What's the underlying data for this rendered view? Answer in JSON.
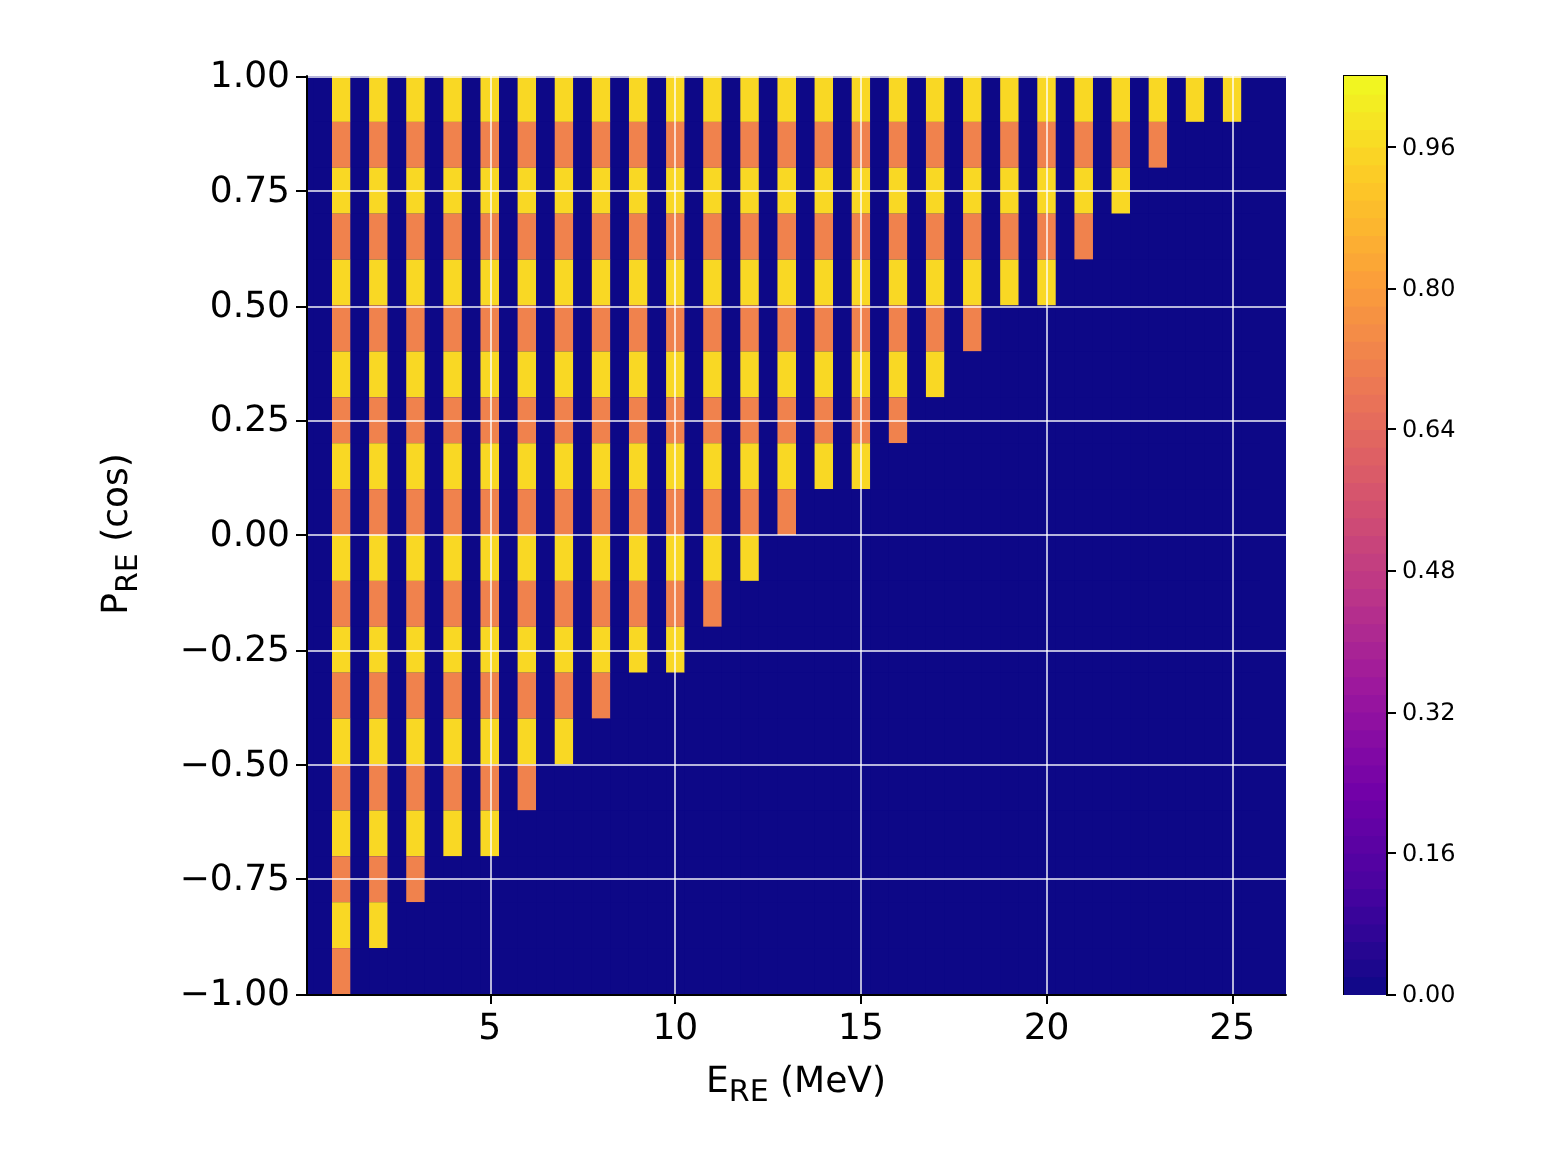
{
  "chart_data": {
    "type": "heatmap",
    "xlabel": "E$_{RE}$ (MeV)",
    "ylabel": "P$_{RE}$ (cos)",
    "x": [
      0.5,
      1,
      1.5,
      2,
      2.5,
      3,
      3.5,
      4,
      4.5,
      5,
      5.5,
      6,
      6.5,
      7,
      7.5,
      8,
      8.5,
      9,
      9.5,
      10,
      10.5,
      11,
      11.5,
      12,
      12.5,
      13,
      13.5,
      14,
      14.5,
      15,
      15.5,
      16,
      16.5,
      17,
      17.5,
      18,
      18.5,
      19,
      19.5,
      20,
      20.5,
      21,
      21.5,
      22,
      22.5,
      23,
      23.5,
      24,
      24.5,
      25,
      25.5
    ],
    "cells": [
      [
        0,
        0.96,
        0,
        0.96,
        0,
        0.96,
        0,
        0.96,
        0,
        0.96,
        0,
        0.96,
        0,
        0.96,
        0,
        0.96,
        0,
        0.96,
        0,
        0.96,
        0,
        0.96,
        0,
        0.96,
        0,
        0.96,
        0,
        0.96,
        0,
        0.96,
        0,
        0.96,
        0,
        0.96,
        0,
        0.96,
        0,
        0.96,
        0,
        0.96,
        0,
        0.96,
        0,
        0.96,
        0,
        0.96,
        0,
        0.96,
        0,
        0.96,
        0
      ],
      [
        0,
        0.72,
        0,
        0.72,
        0,
        0.72,
        0,
        0.72,
        0,
        0.72,
        0,
        0.72,
        0,
        0.72,
        0,
        0.72,
        0,
        0.72,
        0,
        0.72,
        0,
        0.72,
        0,
        0.72,
        0,
        0.72,
        0,
        0.72,
        0,
        0.72,
        0,
        0.72,
        0,
        0.72,
        0,
        0.72,
        0,
        0.72,
        0,
        0.72,
        0,
        0.72,
        0,
        0.72,
        0,
        0.72,
        0,
        0,
        0,
        0,
        0
      ],
      [
        0,
        0.96,
        0,
        0.96,
        0,
        0.96,
        0,
        0.96,
        0,
        0.96,
        0,
        0.96,
        0,
        0.96,
        0,
        0.96,
        0,
        0.96,
        0,
        0.96,
        0,
        0.96,
        0,
        0.96,
        0,
        0.96,
        0,
        0.96,
        0,
        0.96,
        0,
        0.96,
        0,
        0.96,
        0,
        0.96,
        0,
        0.96,
        0,
        0.96,
        0,
        0.96,
        0,
        0.96,
        0,
        0,
        0,
        0,
        0,
        0,
        0
      ],
      [
        0,
        0.72,
        0,
        0.72,
        0,
        0.72,
        0,
        0.72,
        0,
        0.72,
        0,
        0.72,
        0,
        0.72,
        0,
        0.72,
        0,
        0.72,
        0,
        0.72,
        0,
        0.72,
        0,
        0.72,
        0,
        0.72,
        0,
        0.72,
        0,
        0.72,
        0,
        0.72,
        0,
        0.72,
        0,
        0.72,
        0,
        0.72,
        0,
        0.72,
        0,
        0.72,
        0,
        0,
        0,
        0,
        0,
        0,
        0,
        0,
        0
      ],
      [
        0,
        0.96,
        0,
        0.96,
        0,
        0.96,
        0,
        0.96,
        0,
        0.96,
        0,
        0.96,
        0,
        0.96,
        0,
        0.96,
        0,
        0.96,
        0,
        0.96,
        0,
        0.96,
        0,
        0.96,
        0,
        0.96,
        0,
        0.96,
        0,
        0.96,
        0,
        0.96,
        0,
        0.96,
        0,
        0.96,
        0,
        0.96,
        0,
        0.96,
        0,
        0,
        0,
        0,
        0,
        0,
        0,
        0,
        0,
        0,
        0
      ],
      [
        0,
        0.72,
        0,
        0.72,
        0,
        0.72,
        0,
        0.72,
        0,
        0.72,
        0,
        0.72,
        0,
        0.72,
        0,
        0.72,
        0,
        0.72,
        0,
        0.72,
        0,
        0.72,
        0,
        0.72,
        0,
        0.72,
        0,
        0.72,
        0,
        0.72,
        0,
        0.72,
        0,
        0.72,
        0,
        0.72,
        0,
        0,
        0,
        0,
        0,
        0,
        0,
        0,
        0,
        0,
        0,
        0,
        0,
        0,
        0
      ],
      [
        0,
        0.96,
        0,
        0.96,
        0,
        0.96,
        0,
        0.96,
        0,
        0.96,
        0,
        0.96,
        0,
        0.96,
        0,
        0.96,
        0,
        0.96,
        0,
        0.96,
        0,
        0.96,
        0,
        0.96,
        0,
        0.96,
        0,
        0.96,
        0,
        0.96,
        0,
        0.96,
        0,
        0.96,
        0,
        0,
        0,
        0,
        0,
        0,
        0,
        0,
        0,
        0,
        0,
        0,
        0,
        0,
        0,
        0,
        0
      ],
      [
        0,
        0.72,
        0,
        0.72,
        0,
        0.72,
        0,
        0.72,
        0,
        0.72,
        0,
        0.72,
        0,
        0.72,
        0,
        0.72,
        0,
        0.72,
        0,
        0.72,
        0,
        0.72,
        0,
        0.72,
        0,
        0.72,
        0,
        0.72,
        0,
        0.72,
        0,
        0.72,
        0,
        0,
        0,
        0,
        0,
        0,
        0,
        0,
        0,
        0,
        0,
        0,
        0,
        0,
        0,
        0,
        0,
        0,
        0
      ],
      [
        0,
        0.96,
        0,
        0.96,
        0,
        0.96,
        0,
        0.96,
        0,
        0.96,
        0,
        0.96,
        0,
        0.96,
        0,
        0.96,
        0,
        0.96,
        0,
        0.96,
        0,
        0.96,
        0,
        0.96,
        0,
        0.96,
        0,
        0.96,
        0,
        0.96,
        0,
        0,
        0,
        0,
        0,
        0,
        0,
        0,
        0,
        0,
        0,
        0,
        0,
        0,
        0,
        0,
        0,
        0,
        0,
        0,
        0
      ],
      [
        0,
        0.72,
        0,
        0.72,
        0,
        0.72,
        0,
        0.72,
        0,
        0.72,
        0,
        0.72,
        0,
        0.72,
        0,
        0.72,
        0,
        0.72,
        0,
        0.72,
        0,
        0.72,
        0,
        0.72,
        0,
        0.72,
        0,
        0,
        0,
        0,
        0,
        0,
        0,
        0,
        0,
        0,
        0,
        0,
        0,
        0,
        0,
        0,
        0,
        0,
        0,
        0,
        0,
        0,
        0,
        0,
        0
      ],
      [
        0,
        0.96,
        0,
        0.96,
        0,
        0.96,
        0,
        0.96,
        0,
        0.96,
        0,
        0.96,
        0,
        0.96,
        0,
        0.96,
        0,
        0.96,
        0,
        0.96,
        0,
        0.96,
        0,
        0.96,
        0,
        0,
        0,
        0,
        0,
        0,
        0,
        0,
        0,
        0,
        0,
        0,
        0,
        0,
        0,
        0,
        0,
        0,
        0,
        0,
        0,
        0,
        0,
        0,
        0,
        0,
        0
      ],
      [
        0,
        0.72,
        0,
        0.72,
        0,
        0.72,
        0,
        0.72,
        0,
        0.72,
        0,
        0.72,
        0,
        0.72,
        0,
        0.72,
        0,
        0.72,
        0,
        0.72,
        0,
        0.72,
        0,
        0,
        0,
        0,
        0,
        0,
        0,
        0,
        0,
        0,
        0,
        0,
        0,
        0,
        0,
        0,
        0,
        0,
        0,
        0,
        0,
        0,
        0,
        0,
        0,
        0,
        0,
        0,
        0
      ],
      [
        0,
        0.96,
        0,
        0.96,
        0,
        0.96,
        0,
        0.96,
        0,
        0.96,
        0,
        0.96,
        0,
        0.96,
        0,
        0.96,
        0,
        0.96,
        0,
        0.96,
        0,
        0,
        0,
        0,
        0,
        0,
        0,
        0,
        0,
        0,
        0,
        0,
        0,
        0,
        0,
        0,
        0,
        0,
        0,
        0,
        0,
        0,
        0,
        0,
        0,
        0,
        0,
        0,
        0,
        0,
        0
      ],
      [
        0,
        0.72,
        0,
        0.72,
        0,
        0.72,
        0,
        0.72,
        0,
        0.72,
        0,
        0.72,
        0,
        0.72,
        0,
        0.72,
        0,
        0,
        0,
        0,
        0,
        0,
        0,
        0,
        0,
        0,
        0,
        0,
        0,
        0,
        0,
        0,
        0,
        0,
        0,
        0,
        0,
        0,
        0,
        0,
        0,
        0,
        0,
        0,
        0,
        0,
        0,
        0,
        0,
        0,
        0
      ],
      [
        0,
        0.96,
        0,
        0.96,
        0,
        0.96,
        0,
        0.96,
        0,
        0.96,
        0,
        0.96,
        0,
        0.96,
        0,
        0,
        0,
        0,
        0,
        0,
        0,
        0,
        0,
        0,
        0,
        0,
        0,
        0,
        0,
        0,
        0,
        0,
        0,
        0,
        0,
        0,
        0,
        0,
        0,
        0,
        0,
        0,
        0,
        0,
        0,
        0,
        0,
        0,
        0,
        0,
        0
      ],
      [
        0,
        0.72,
        0,
        0.72,
        0,
        0.72,
        0,
        0.72,
        0,
        0.72,
        0,
        0.72,
        0,
        0,
        0,
        0,
        0,
        0,
        0,
        0,
        0,
        0,
        0,
        0,
        0,
        0,
        0,
        0,
        0,
        0,
        0,
        0,
        0,
        0,
        0,
        0,
        0,
        0,
        0,
        0,
        0,
        0,
        0,
        0,
        0,
        0,
        0,
        0,
        0,
        0,
        0
      ],
      [
        0,
        0.96,
        0,
        0.96,
        0,
        0.96,
        0,
        0.96,
        0,
        0.96,
        0,
        0,
        0,
        0,
        0,
        0,
        0,
        0,
        0,
        0,
        0,
        0,
        0,
        0,
        0,
        0,
        0,
        0,
        0,
        0,
        0,
        0,
        0,
        0,
        0,
        0,
        0,
        0,
        0,
        0,
        0,
        0,
        0,
        0,
        0,
        0,
        0,
        0,
        0,
        0,
        0
      ],
      [
        0,
        0.72,
        0,
        0.72,
        0,
        0.72,
        0,
        0,
        0,
        0,
        0,
        0,
        0,
        0,
        0,
        0,
        0,
        0,
        0,
        0,
        0,
        0,
        0,
        0,
        0,
        0,
        0,
        0,
        0,
        0,
        0,
        0,
        0,
        0,
        0,
        0,
        0,
        0,
        0,
        0,
        0,
        0,
        0,
        0,
        0,
        0,
        0,
        0,
        0,
        0,
        0
      ],
      [
        0,
        0.96,
        0,
        0.96,
        0,
        0,
        0,
        0,
        0,
        0,
        0,
        0,
        0,
        0,
        0,
        0,
        0,
        0,
        0,
        0,
        0,
        0,
        0,
        0,
        0,
        0,
        0,
        0,
        0,
        0,
        0,
        0,
        0,
        0,
        0,
        0,
        0,
        0,
        0,
        0,
        0,
        0,
        0,
        0,
        0,
        0,
        0,
        0,
        0,
        0,
        0
      ],
      [
        0,
        0.72,
        0,
        0,
        0,
        0,
        0,
        0,
        0,
        0,
        0,
        0,
        0,
        0,
        0,
        0,
        0,
        0,
        0,
        0,
        0,
        0,
        0,
        0,
        0,
        0,
        0,
        0,
        0,
        0,
        0,
        0,
        0,
        0,
        0,
        0,
        0,
        0,
        0,
        0,
        0,
        0,
        0,
        0,
        0,
        0,
        0,
        0,
        0,
        0,
        0
      ]
    ],
    "xlim": [
      0.05,
      26.45
    ],
    "xticks": [
      5,
      10,
      15,
      20,
      25
    ],
    "ylim": [
      -1,
      1
    ],
    "yticks": [
      {
        "value": -1,
        "label": "−1.00"
      },
      {
        "value": -0.75,
        "label": "−0.75"
      },
      {
        "value": -0.5,
        "label": "−0.50"
      },
      {
        "value": -0.25,
        "label": "−0.25"
      },
      {
        "value": 0,
        "label": "0.00"
      },
      {
        "value": 0.25,
        "label": "0.25"
      },
      {
        "value": 0.5,
        "label": "0.50"
      },
      {
        "value": 0.75,
        "label": "0.75"
      },
      {
        "value": 1,
        "label": "1.00"
      }
    ],
    "clim": [
      0,
      1.04
    ],
    "cticks": [
      {
        "value": 0,
        "label": "0.00"
      },
      {
        "value": 0.16,
        "label": "0.16"
      },
      {
        "value": 0.32,
        "label": "0.32"
      },
      {
        "value": 0.48,
        "label": "0.48"
      },
      {
        "value": 0.64,
        "label": "0.64"
      },
      {
        "value": 0.8,
        "label": "0.80"
      },
      {
        "value": 0.96,
        "label": "0.96"
      }
    ],
    "grid": true
  }
}
